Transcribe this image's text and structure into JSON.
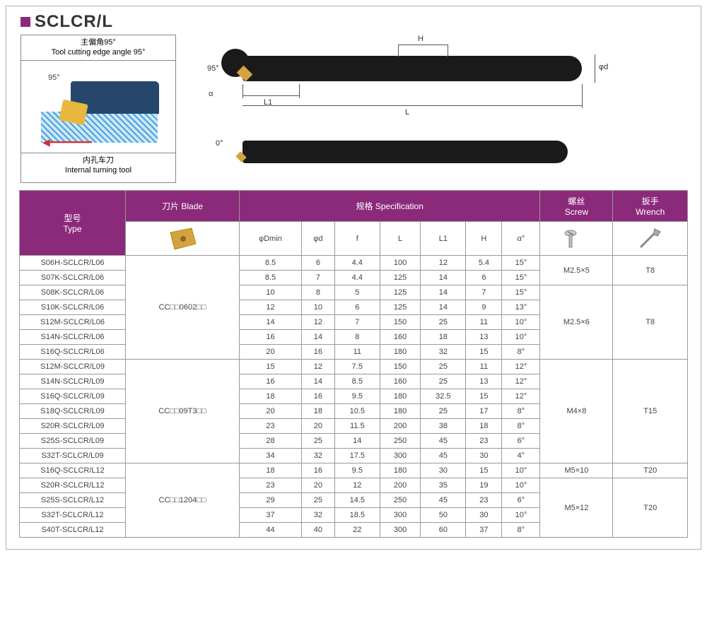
{
  "title": "SCLCR/L",
  "diagram": {
    "angle_cn": "主偏角95°",
    "angle_en": "Tool cutting edge angle 95°",
    "angle_mark": "95°",
    "name_cn": "内孔车刀",
    "name_en": "Internal turning tool"
  },
  "dims": {
    "H": "H",
    "L": "L",
    "L1": "L1",
    "phi_d": "φd",
    "angle95": "95°",
    "alpha": "α",
    "zero": "0°"
  },
  "headers": {
    "type_cn": "型号",
    "type_en": "Type",
    "blade_cn": "刀片",
    "blade_en": "Blade",
    "spec_cn": "规格",
    "spec_en": "Specification",
    "screw_cn": "螺丝",
    "screw_en": "Screw",
    "wrench_cn": "扳手",
    "wrench_en": "Wrench",
    "dmin": "φDmin",
    "d": "φd",
    "f": "f",
    "L": "L",
    "L1": "L1",
    "H": "H",
    "alpha": "α°"
  },
  "groups": [
    {
      "blade": "CC□□0602□□",
      "rows": [
        {
          "type": "S06H-SCLCR/L06",
          "dmin": "8.5",
          "d": "6",
          "f": "4.4",
          "L": "100",
          "L1": "12",
          "H": "5.4",
          "a": "15°",
          "screw": "M2.5×5",
          "wrench": "T8",
          "screw_span": 2,
          "wrench_span": 2
        },
        {
          "type": "S07K-SCLCR/L06",
          "dmin": "8.5",
          "d": "7",
          "f": "4.4",
          "L": "125",
          "L1": "14",
          "H": "6",
          "a": "15°"
        },
        {
          "type": "S08K-SCLCR/L06",
          "dmin": "10",
          "d": "8",
          "f": "5",
          "L": "125",
          "L1": "14",
          "H": "7",
          "a": "15°",
          "screw": "M2.5×6",
          "wrench": "T8",
          "screw_span": 5,
          "wrench_span": 5
        },
        {
          "type": "S10K-SCLCR/L06",
          "dmin": "12",
          "d": "10",
          "f": "6",
          "L": "125",
          "L1": "14",
          "H": "9",
          "a": "13°"
        },
        {
          "type": "S12M-SCLCR/L06",
          "dmin": "14",
          "d": "12",
          "f": "7",
          "L": "150",
          "L1": "25",
          "H": "11",
          "a": "10°"
        },
        {
          "type": "S14N-SCLCR/L06",
          "dmin": "16",
          "d": "14",
          "f": "8",
          "L": "160",
          "L1": "18",
          "H": "13",
          "a": "10°"
        },
        {
          "type": "S16Q-SCLCR/L06",
          "dmin": "20",
          "d": "16",
          "f": "11",
          "L": "180",
          "L1": "32",
          "H": "15",
          "a": "8°"
        }
      ]
    },
    {
      "blade": "CC□□09T3□□",
      "rows": [
        {
          "type": "S12M-SCLCR/L09",
          "dmin": "15",
          "d": "12",
          "f": "7.5",
          "L": "150",
          "L1": "25",
          "H": "11",
          "a": "12°",
          "screw": "M4×8",
          "wrench": "T15",
          "screw_span": 7,
          "wrench_span": 7
        },
        {
          "type": "S14N-SCLCR/L09",
          "dmin": "16",
          "d": "14",
          "f": "8.5",
          "L": "160",
          "L1": "25",
          "H": "13",
          "a": "12°"
        },
        {
          "type": "S16Q-SCLCR/L09",
          "dmin": "18",
          "d": "16",
          "f": "9.5",
          "L": "180",
          "L1": "32.5",
          "H": "15",
          "a": "12°"
        },
        {
          "type": "S18Q-SCLCR/L09",
          "dmin": "20",
          "d": "18",
          "f": "10.5",
          "L": "180",
          "L1": "25",
          "H": "17",
          "a": "8°"
        },
        {
          "type": "S20R-SCLCR/L09",
          "dmin": "23",
          "d": "20",
          "f": "11.5",
          "L": "200",
          "L1": "38",
          "H": "18",
          "a": "8°"
        },
        {
          "type": "S25S-SCLCR/L09",
          "dmin": "28",
          "d": "25",
          "f": "14",
          "L": "250",
          "L1": "45",
          "H": "23",
          "a": "6°"
        },
        {
          "type": "S32T-SCLCR/L09",
          "dmin": "34",
          "d": "32",
          "f": "17.5",
          "L": "300",
          "L1": "45",
          "H": "30",
          "a": "4°"
        }
      ]
    },
    {
      "blade": "CC□□1204□□",
      "rows": [
        {
          "type": "S16Q-SCLCR/L12",
          "dmin": "18",
          "d": "16",
          "f": "9.5",
          "L": "180",
          "L1": "30",
          "H": "15",
          "a": "10°",
          "screw": "M5×10",
          "wrench": "T20",
          "screw_span": 1,
          "wrench_span": 1
        },
        {
          "type": "S20R-SCLCR/L12",
          "dmin": "23",
          "d": "20",
          "f": "12",
          "L": "200",
          "L1": "35",
          "H": "19",
          "a": "10°",
          "screw": "M5×12",
          "wrench": "T20",
          "screw_span": 4,
          "wrench_span": 4
        },
        {
          "type": "S25S-SCLCR/L12",
          "dmin": "29",
          "d": "25",
          "f": "14.5",
          "L": "250",
          "L1": "45",
          "H": "23",
          "a": "6°"
        },
        {
          "type": "S32T-SCLCR/L12",
          "dmin": "37",
          "d": "32",
          "f": "18.5",
          "L": "300",
          "L1": "50",
          "H": "30",
          "a": "10°"
        },
        {
          "type": "S40T-SCLCR/L12",
          "dmin": "44",
          "d": "40",
          "f": "22",
          "L": "300",
          "L1": "60",
          "H": "37",
          "a": "8°"
        }
      ]
    }
  ],
  "colors": {
    "brand": "#8b2a7a",
    "border": "#999999",
    "text": "#444444",
    "tool": "#1a1a1a",
    "insert": "#d4a340"
  }
}
